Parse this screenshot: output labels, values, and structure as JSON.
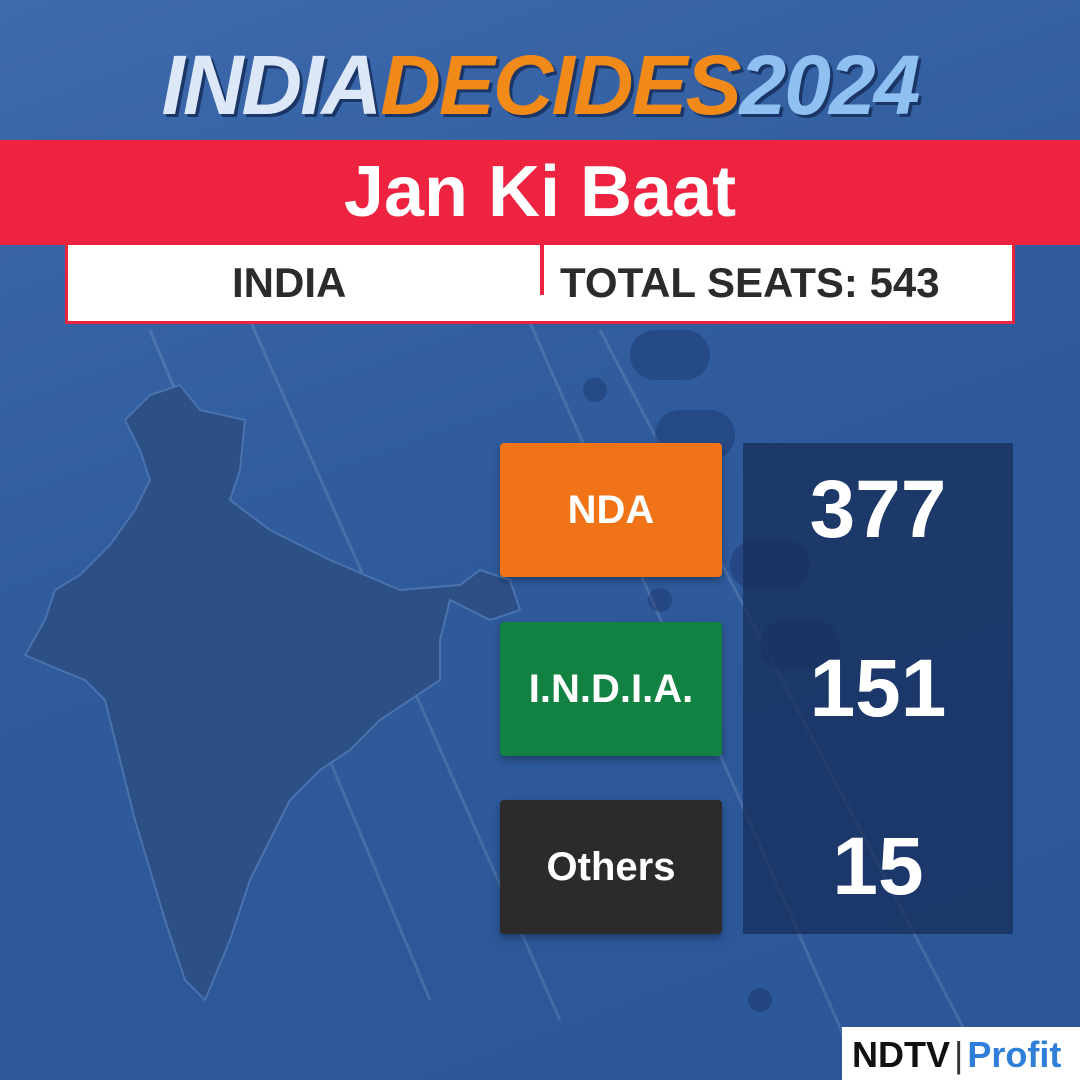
{
  "header": {
    "brand": [
      "INDIA",
      "DECIDES",
      "2024"
    ],
    "title": "Jan Ki Baat"
  },
  "info_bar": {
    "region": "INDIA",
    "total": "TOTAL SEATS: 543"
  },
  "results": [
    {
      "label": "NDA",
      "seats": 377
    },
    {
      "label": "I.N.D.I.A.",
      "seats": 151
    },
    {
      "label": "Others",
      "seats": 15
    }
  ],
  "logo": {
    "left": "NDTV",
    "right": "Profit"
  }
}
